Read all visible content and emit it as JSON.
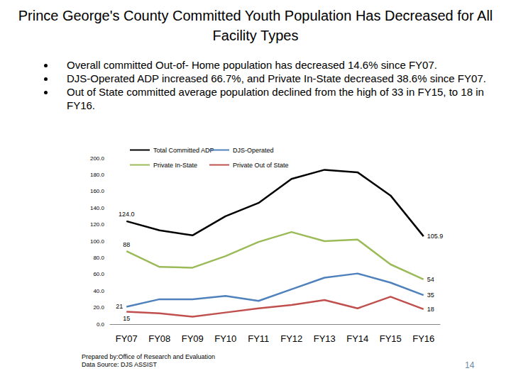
{
  "chart_data": {
    "type": "line",
    "title": "Prince George's County Committed Youth Population Has Decreased for All Facility Types",
    "categories": [
      "FY07",
      "FY08",
      "FY09",
      "FY10",
      "FY11",
      "FY12",
      "FY13",
      "FY14",
      "FY15",
      "FY16"
    ],
    "series": [
      {
        "name": "Total Committed ADP",
        "color": "#000000",
        "values": [
          124.0,
          113,
          107,
          130,
          146,
          175,
          186,
          183,
          155,
          105.9
        ],
        "value_labels": [
          "124.0",
          null,
          null,
          null,
          null,
          null,
          null,
          null,
          null,
          "105.9"
        ]
      },
      {
        "name": "DJS-Operated",
        "color": "#4f81bd",
        "values": [
          21,
          30,
          30,
          34,
          28,
          42,
          56,
          61,
          50,
          35
        ],
        "value_labels": [
          "21",
          null,
          null,
          null,
          null,
          null,
          null,
          null,
          null,
          "35"
        ]
      },
      {
        "name": "Private In-State",
        "color": "#9bbb59",
        "values": [
          88,
          69,
          68,
          82,
          99,
          111,
          100,
          102,
          72,
          54
        ],
        "value_labels": [
          "88",
          null,
          null,
          null,
          null,
          null,
          null,
          null,
          null,
          "54"
        ]
      },
      {
        "name": "Private Out of State",
        "color": "#c0504d",
        "values": [
          15,
          13,
          9,
          14,
          19,
          23,
          29,
          19,
          33,
          18
        ],
        "value_labels": [
          "15",
          null,
          null,
          null,
          null,
          null,
          null,
          null,
          null,
          "18"
        ]
      }
    ],
    "ylim": [
      0,
      200
    ],
    "yticks": [
      {
        "value": 0,
        "label": "0.0"
      },
      {
        "value": 20,
        "label": "20.0"
      },
      {
        "value": 40,
        "label": "40.0"
      },
      {
        "value": 60,
        "label": "60.0"
      },
      {
        "value": 80,
        "label": "80.0"
      },
      {
        "value": 100,
        "label": "100.0"
      },
      {
        "value": 120,
        "label": "120.0"
      },
      {
        "value": 140,
        "label": "140.0"
      },
      {
        "value": 160,
        "label": "160.0"
      },
      {
        "value": 180,
        "label": "180.0"
      },
      {
        "value": 200,
        "label": "200.0"
      }
    ],
    "grid": false,
    "legend": "top",
    "data_labels": true
  },
  "slide": {
    "bullets": [
      "Overall committed Out-of- Home population has decreased 14.6% since FY07.",
      "DJS-Operated ADP increased 66.7%, and Private In-State decreased 38.6% since FY07.",
      "Out of State committed average population declined from the high of 33 in FY15, to 18 in FY16."
    ],
    "footer": [
      "Prepared by:Office of Research and Evaluation",
      "Data Source: DJS ASSIST"
    ],
    "page_number": "14"
  }
}
